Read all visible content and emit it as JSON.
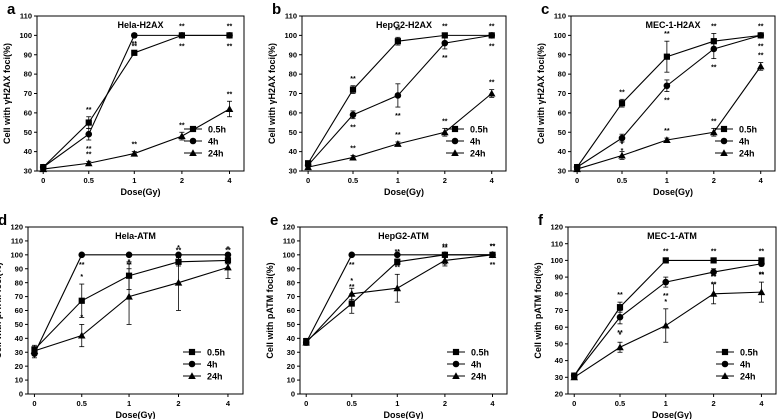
{
  "chart_data": [
    {
      "type": "line",
      "panel_letter": "a",
      "title": "Hela-H2AX",
      "xlabel": "Dose(Gy)",
      "ylabel": "Cell with γH2AX foci(%)",
      "x_ticks": [
        "0",
        "0.5",
        "1",
        "2",
        "4"
      ],
      "ylim": [
        30,
        110
      ],
      "y_step": 10,
      "legend": "lower-right",
      "series": [
        {
          "name": "0.5h",
          "marker": "square",
          "values": [
            32,
            55,
            91,
            100,
            100
          ],
          "errors": [
            1,
            3,
            1,
            1,
            1
          ],
          "sig": [
            "",
            "**",
            "**",
            "**",
            "**"
          ]
        },
        {
          "name": "4h",
          "marker": "circle",
          "values": [
            32,
            49,
            100,
            100,
            100
          ],
          "errors": [
            1,
            3,
            1,
            1,
            1
          ],
          "sig": [
            "",
            "**",
            "**",
            "**",
            "**"
          ]
        },
        {
          "name": "24h",
          "marker": "triangle",
          "values": [
            31,
            34,
            39,
            48,
            62
          ],
          "errors": [
            1,
            1,
            1,
            2,
            4
          ],
          "sig": [
            "",
            "**",
            "**",
            "**",
            "**"
          ]
        }
      ]
    },
    {
      "type": "line",
      "panel_letter": "b",
      "title": "HepG2-H2AX",
      "xlabel": "Dose(Gy)",
      "ylabel": "Cell with γH2AX foci(%)",
      "x_ticks": [
        "0",
        "0.5",
        "1",
        "2",
        "4"
      ],
      "ylim": [
        30,
        110
      ],
      "y_step": 10,
      "legend": "lower-right",
      "series": [
        {
          "name": "0.5h",
          "marker": "square",
          "values": [
            34,
            72,
            97,
            100,
            100
          ],
          "errors": [
            1,
            2,
            2,
            1,
            1
          ],
          "sig": [
            "",
            "**",
            "**",
            "**",
            "**"
          ]
        },
        {
          "name": "4h",
          "marker": "circle",
          "values": [
            33,
            59,
            69,
            96,
            100
          ],
          "errors": [
            1,
            2,
            6,
            3,
            1
          ],
          "sig": [
            "",
            "**",
            "**",
            "**",
            "**"
          ]
        },
        {
          "name": "24h",
          "marker": "triangle",
          "values": [
            32,
            37,
            44,
            50,
            70
          ],
          "errors": [
            1,
            1,
            1,
            2,
            2
          ],
          "sig": [
            "",
            "**",
            "**",
            "**",
            "**"
          ]
        }
      ]
    },
    {
      "type": "line",
      "panel_letter": "c",
      "title": "MEC-1-H2AX",
      "xlabel": "Dose(Gy)",
      "ylabel": "Cell with γH2AX foci(%)",
      "x_ticks": [
        "0",
        "0.5",
        "1",
        "2",
        "4"
      ],
      "ylim": [
        30,
        110
      ],
      "y_step": 10,
      "legend": "lower-right",
      "series": [
        {
          "name": "0.5h",
          "marker": "square",
          "values": [
            32,
            65,
            89,
            97,
            100
          ],
          "errors": [
            1,
            2,
            8,
            4,
            1
          ],
          "sig": [
            "",
            "**",
            "**",
            "**",
            "**"
          ]
        },
        {
          "name": "4h",
          "marker": "circle",
          "values": [
            32,
            47,
            74,
            93,
            100
          ],
          "errors": [
            1,
            2,
            3,
            5,
            1
          ],
          "sig": [
            "",
            "*",
            "**",
            "**",
            "**"
          ]
        },
        {
          "name": "24h",
          "marker": "triangle",
          "values": [
            31,
            38,
            46,
            50,
            84
          ],
          "errors": [
            1,
            2,
            1,
            2,
            2
          ],
          "sig": [
            "",
            "*",
            "**",
            "**",
            "**"
          ]
        }
      ]
    },
    {
      "type": "line",
      "panel_letter": "d",
      "title": "Hela-ATM",
      "xlabel": "Dose(Gy)",
      "ylabel": "Cell with pATM foci(%)",
      "x_ticks": [
        "0",
        "0.5",
        "1",
        "2",
        "4"
      ],
      "ylim": [
        0,
        120
      ],
      "y_step": 10,
      "legend": "lower-right",
      "series": [
        {
          "name": "0.5h",
          "marker": "square",
          "values": [
            32,
            67,
            85,
            95,
            96
          ],
          "errors": [
            3,
            12,
            10,
            3,
            2
          ],
          "sig": [
            "",
            "*",
            "*",
            "**",
            "**"
          ]
        },
        {
          "name": "4h",
          "marker": "circle",
          "values": [
            29,
            100,
            100,
            100,
            100
          ],
          "errors": [
            3,
            1,
            1,
            1,
            1
          ],
          "sig": [
            "",
            "**",
            "**",
            "**",
            "**"
          ]
        },
        {
          "name": "24h",
          "marker": "triangle",
          "values": [
            31,
            42,
            70,
            80,
            91
          ],
          "errors": [
            3,
            8,
            20,
            20,
            8
          ],
          "sig": [
            "",
            "*",
            "*",
            "*",
            "*"
          ]
        }
      ]
    },
    {
      "type": "line",
      "panel_letter": "e",
      "title": "HepG2-ATM",
      "xlabel": "Dose(Gy)",
      "ylabel": "Cell with pATM foci(%)",
      "x_ticks": [
        "0",
        "0.5",
        "1",
        "2",
        "4"
      ],
      "ylim": [
        0,
        120
      ],
      "y_step": 10,
      "legend": "lower-right",
      "series": [
        {
          "name": "0.5h",
          "marker": "square",
          "values": [
            38,
            65,
            95,
            100,
            100
          ],
          "errors": [
            2,
            7,
            2,
            1,
            1
          ],
          "sig": [
            "",
            "**",
            "**",
            "**",
            "**"
          ]
        },
        {
          "name": "4h",
          "marker": "circle",
          "values": [
            37,
            100,
            100,
            100,
            100
          ],
          "errors": [
            2,
            1,
            1,
            1,
            1
          ],
          "sig": [
            "",
            "**",
            "**",
            "**",
            "**"
          ]
        },
        {
          "name": "24h",
          "marker": "triangle",
          "values": [
            37,
            72,
            76,
            96,
            100
          ],
          "errors": [
            2,
            4,
            10,
            4,
            1
          ],
          "sig": [
            "",
            "*",
            "**",
            "**",
            "**"
          ]
        }
      ]
    },
    {
      "type": "line",
      "panel_letter": "f",
      "title": "MEC-1-ATM",
      "xlabel": "Dose(Gy)",
      "ylabel": "Cell with pATM foci(%)",
      "x_ticks": [
        "0",
        "0.5",
        "1",
        "2",
        "4"
      ],
      "ylim": [
        20,
        120
      ],
      "y_step": 10,
      "legend": "lower-right",
      "series": [
        {
          "name": "0.5h",
          "marker": "square",
          "values": [
            31,
            72,
            100,
            100,
            100
          ],
          "errors": [
            1,
            3,
            1,
            1,
            1
          ],
          "sig": [
            "",
            "**",
            "**",
            "**",
            "**"
          ]
        },
        {
          "name": "4h",
          "marker": "circle",
          "values": [
            31,
            66,
            87,
            93,
            98
          ],
          "errors": [
            1,
            4,
            3,
            2,
            1
          ],
          "sig": [
            "",
            "**",
            "**",
            "**",
            "**"
          ]
        },
        {
          "name": "24h",
          "marker": "triangle",
          "values": [
            30,
            48,
            61,
            80,
            81
          ],
          "errors": [
            1,
            3,
            10,
            6,
            6
          ],
          "sig": [
            "",
            "*",
            "*",
            "**",
            "**"
          ]
        }
      ]
    }
  ]
}
